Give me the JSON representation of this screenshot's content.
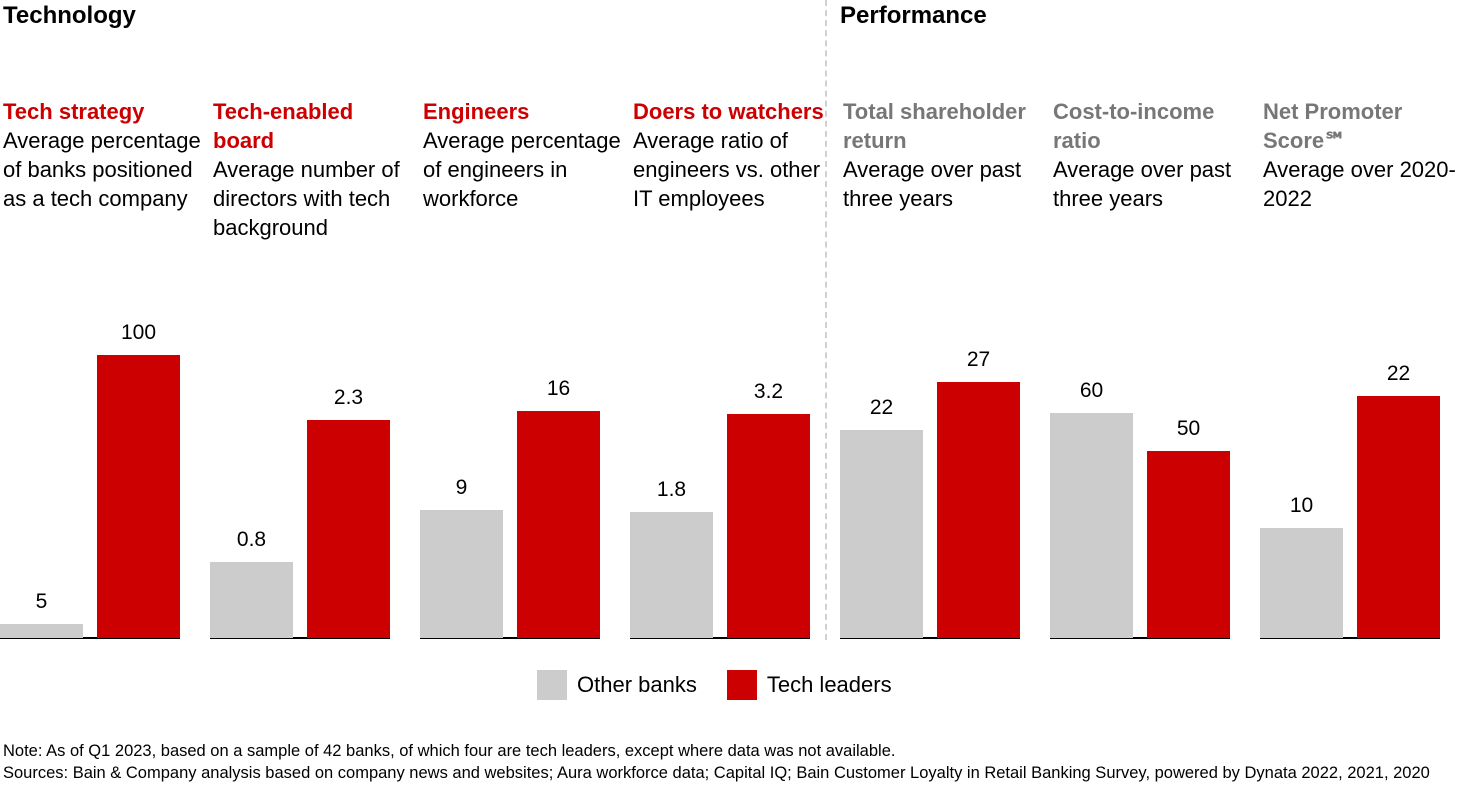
{
  "colors": {
    "other": "#cccccc",
    "leaders": "#cc0000",
    "perf_title": "#777777"
  },
  "sections": {
    "technology": "Technology",
    "performance": "Performance"
  },
  "chart_data": {
    "type": "bar",
    "series_names": [
      "Other banks",
      "Tech leaders"
    ],
    "legend": "bottom-center",
    "panels": [
      {
        "group": "technology",
        "title": "Tech strategy",
        "subtitle": "Average percentage of banks positioned as a tech company",
        "values": [
          5,
          100
        ],
        "labels": [
          "5",
          "100"
        ]
      },
      {
        "group": "technology",
        "title": "Tech-enabled board",
        "subtitle": "Average number of directors with tech background",
        "values": [
          0.8,
          2.3
        ],
        "labels": [
          "0.8",
          "2.3"
        ]
      },
      {
        "group": "technology",
        "title": "Engineers",
        "subtitle": "Average percentage of engineers in workforce",
        "values": [
          9,
          16
        ],
        "labels": [
          "9",
          "16"
        ]
      },
      {
        "group": "technology",
        "title": "Doers to watchers",
        "subtitle": "Average ratio of engineers vs. other IT employees",
        "values": [
          1.8,
          3.2
        ],
        "labels": [
          "1.8",
          "3.2"
        ]
      },
      {
        "group": "performance",
        "title": "Total shareholder return",
        "subtitle": "Average over past three years",
        "values": [
          22,
          27
        ],
        "labels": [
          "22",
          "27"
        ]
      },
      {
        "group": "performance",
        "title": "Cost-to-income ratio",
        "subtitle": "Average over past three years",
        "values": [
          60,
          50
        ],
        "labels": [
          "60",
          "50"
        ]
      },
      {
        "group": "performance",
        "title": "Net Promoter Score℠",
        "subtitle": "Average over 2020-2022",
        "values": [
          10,
          22
        ],
        "labels": [
          "10",
          "22"
        ]
      }
    ]
  },
  "legend": {
    "other": "Other banks",
    "leaders": "Tech leaders"
  },
  "footnote": {
    "note": "Note: As of Q1 2023, based on a sample of 42 banks, of which four are tech leaders, except where data was not available.",
    "sources": "Sources: Bain & Company analysis based on company news and websites; Aura workforce data; Capital IQ; Bain Customer Loyalty in Retail Banking Survey, powered by Dynata 2022, 2021, 2020"
  }
}
